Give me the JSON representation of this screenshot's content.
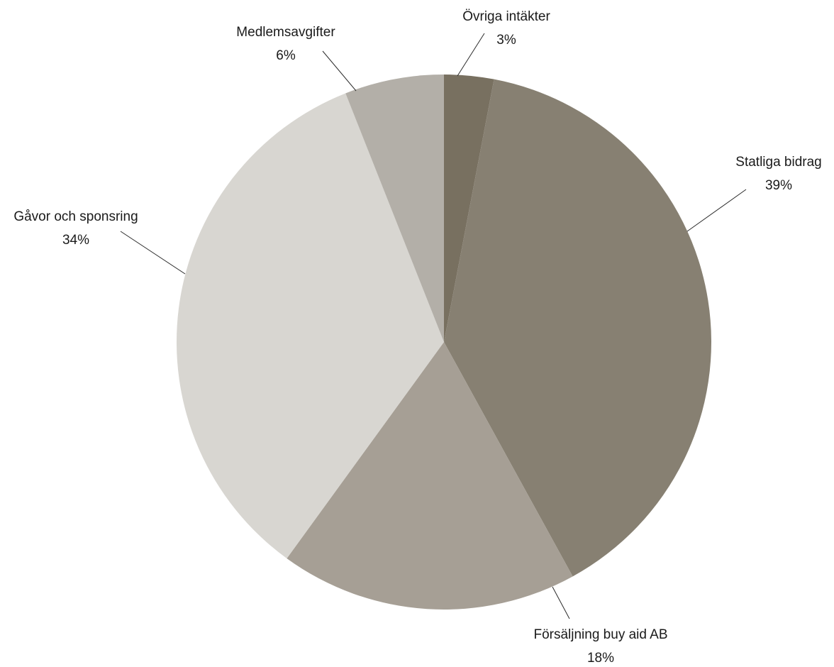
{
  "chart_data": {
    "type": "pie",
    "title": "",
    "slices": [
      {
        "name": "Övriga intäkter",
        "label": "3%",
        "value": 3,
        "color": "#787060"
      },
      {
        "name": "Statliga bidrag",
        "label": "39%",
        "value": 39,
        "color": "#878072"
      },
      {
        "name": "Försäljning buy aid AB",
        "label": "18%",
        "value": 18,
        "color": "#a69f95"
      },
      {
        "name": "Gåvor och sponsring",
        "label": "34%",
        "value": 34,
        "color": "#d8d6d1"
      },
      {
        "name": "Medlemsavgifter",
        "label": "6%",
        "value": 6,
        "color": "#b3afa8"
      }
    ],
    "start_angle_deg": 0,
    "direction": "clockwise",
    "legend": "none"
  }
}
